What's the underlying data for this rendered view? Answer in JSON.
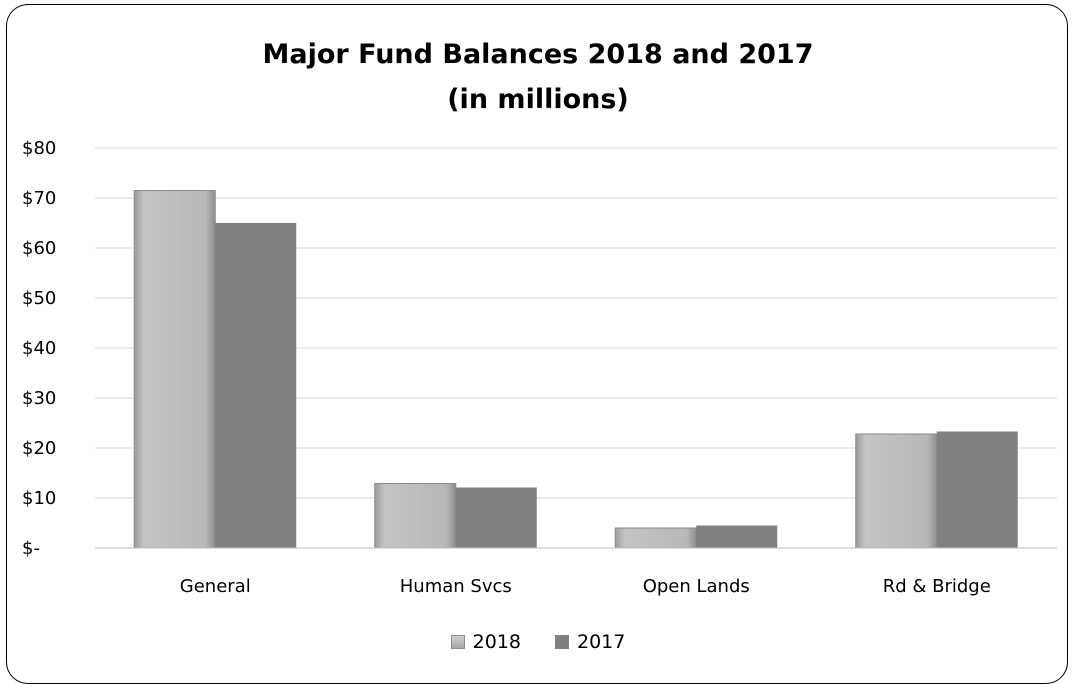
{
  "chart_data": {
    "type": "bar",
    "title": "Major Fund Balances 2018 and 2017",
    "subtitle": "(in millions)",
    "categories": [
      "General",
      "Human Svcs",
      "Open Lands",
      "Rd & Bridge"
    ],
    "series": [
      {
        "name": "2018",
        "values": [
          71.5,
          12.9,
          4.0,
          22.8
        ],
        "color": "#b3b3b3"
      },
      {
        "name": "2017",
        "values": [
          65.0,
          12.1,
          4.5,
          23.3
        ],
        "color": "#808080"
      }
    ],
    "ylim": [
      0,
      80
    ],
    "yticks": [
      0,
      10,
      20,
      30,
      40,
      50,
      60,
      70,
      80
    ],
    "ytick_labels": [
      "$-",
      "$10",
      "$20",
      "$30",
      "$40",
      "$50",
      "$60",
      "$70",
      "$80"
    ],
    "grid": true,
    "legend": "bottom"
  }
}
